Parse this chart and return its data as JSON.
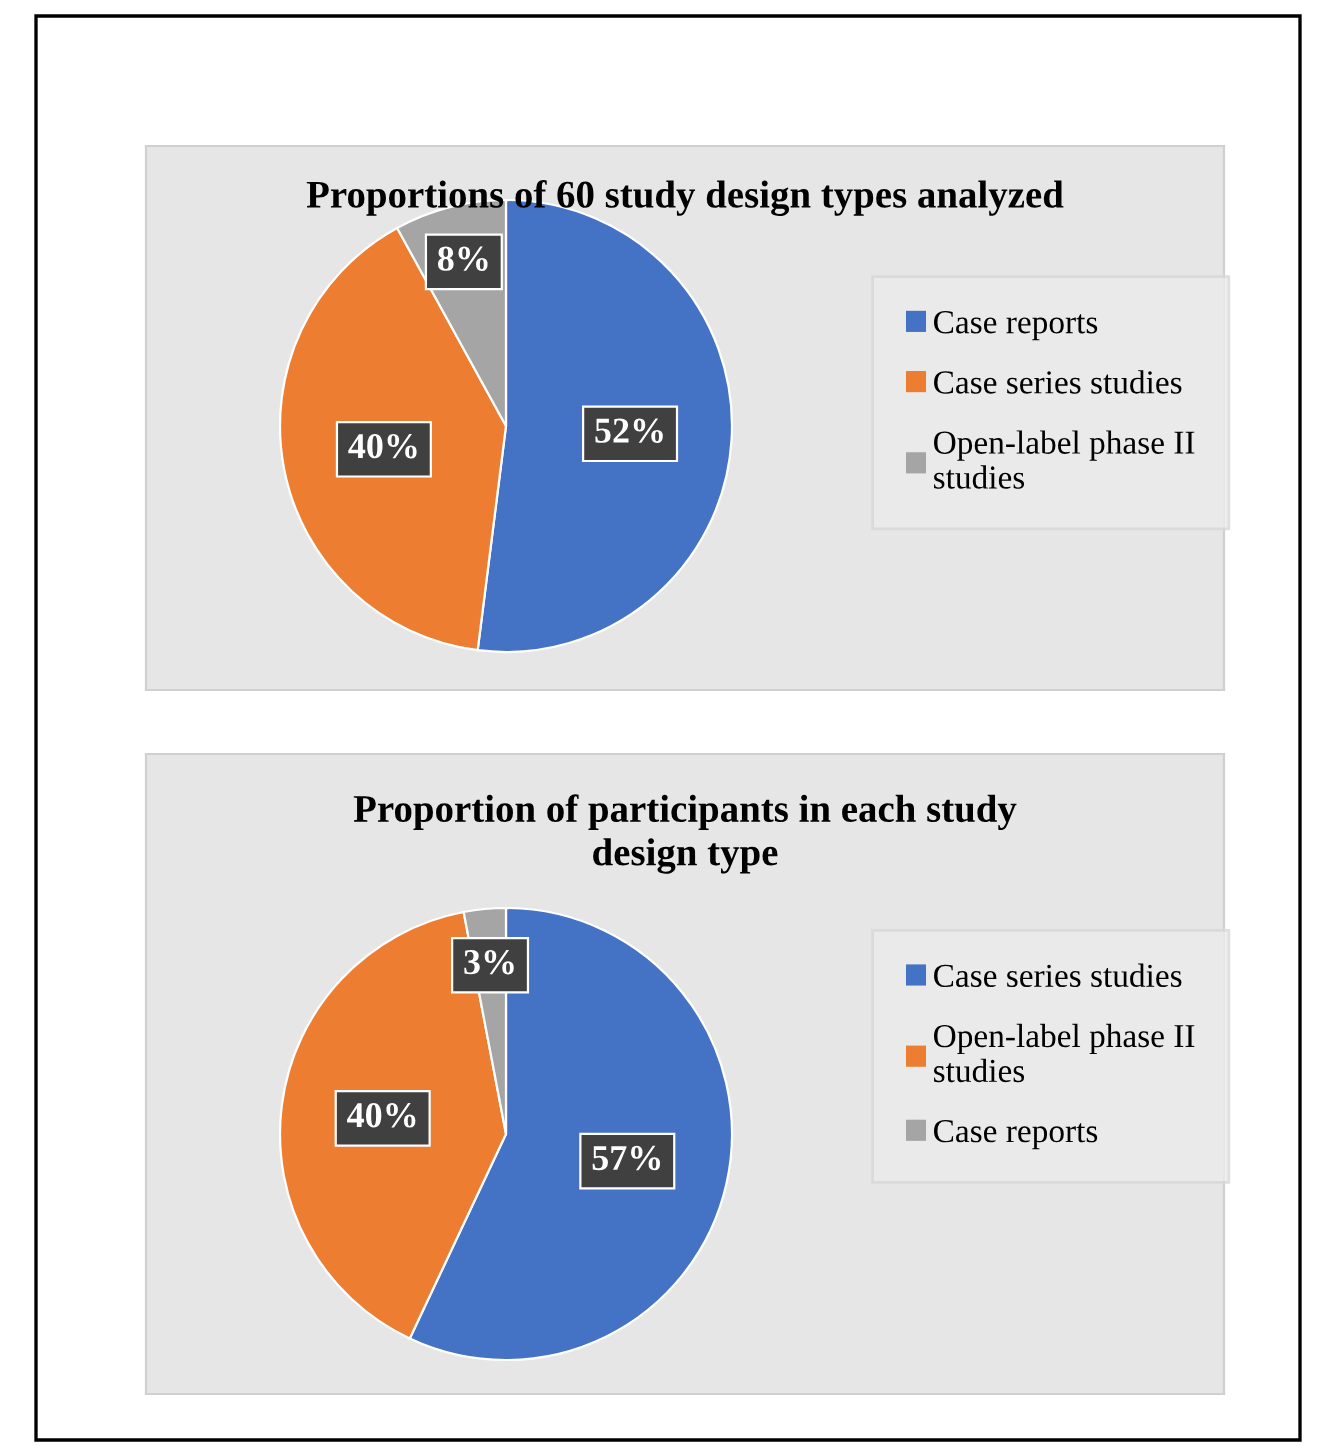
{
  "chart_data": [
    {
      "type": "pie",
      "title": "Proportions of 60 study design types analyzed",
      "categories": [
        "Case reports",
        "Case series studies",
        "Open-label phase II\nstudies"
      ],
      "values": [
        52,
        40,
        8
      ],
      "value_labels": [
        "52%",
        "40%",
        "8%"
      ],
      "colors": [
        "#4472c4",
        "#ed7d31",
        "#a5a5a5"
      ],
      "legend": "right"
    },
    {
      "type": "pie",
      "title": "Proportion of participants in each study\ndesign type",
      "categories": [
        "Case series studies",
        "Open-label phase II\nstudies",
        "Case reports"
      ],
      "values": [
        57,
        40,
        3
      ],
      "value_labels": [
        "57%",
        "40%",
        "3%"
      ],
      "colors": [
        "#4472c4",
        "#ed7d31",
        "#a5a5a5"
      ],
      "legend": "right"
    }
  ]
}
